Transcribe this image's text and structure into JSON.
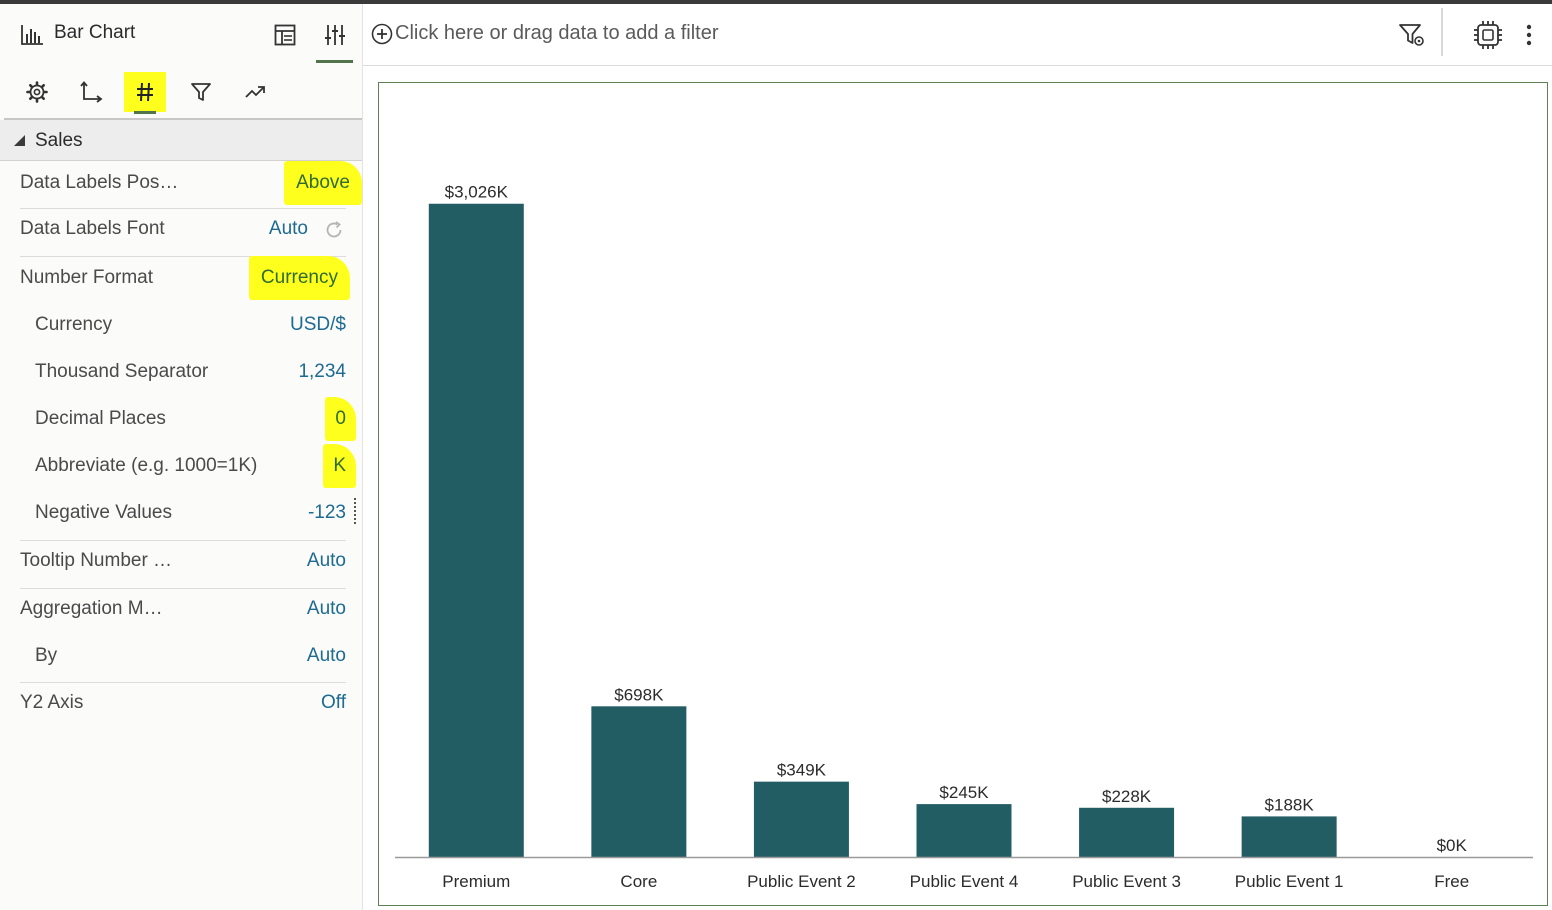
{
  "panel": {
    "chart_type_label": "Bar Chart",
    "tabs": [
      "general-tab",
      "axis-tab",
      "values-tab",
      "filters-tab",
      "analytics-tab"
    ],
    "active_tab": "values-tab",
    "section": "Sales",
    "rows": [
      {
        "label": "Data Labels Pos…",
        "value": "Above",
        "highlight": true
      },
      {
        "label": "Data Labels Font",
        "value": "Auto",
        "highlight": false
      },
      {
        "label": "Number Format",
        "value": "Currency",
        "highlight": true
      },
      {
        "label": "Currency",
        "value": "USD/$",
        "highlight": false
      },
      {
        "label": "Thousand Separator",
        "value": "1,234",
        "highlight": false
      },
      {
        "label": "Decimal Places",
        "value": "0",
        "highlight": true
      },
      {
        "label": "Abbreviate (e.g. 1000=1K)",
        "value": "K",
        "highlight": true
      },
      {
        "label": "Negative Values",
        "value": "-123",
        "highlight": false
      },
      {
        "label": "Tooltip Number …",
        "value": "Auto",
        "highlight": false
      },
      {
        "label": "Aggregation M…",
        "value": "Auto",
        "highlight": false
      },
      {
        "label": "By",
        "value": "Auto",
        "highlight": false
      },
      {
        "label": "Y2 Axis",
        "value": "Off",
        "highlight": false
      }
    ]
  },
  "filter_bar": {
    "placeholder": "Click here or drag data to add a filter"
  },
  "colors": {
    "bar": "#235d64",
    "highlight": "#ffff1e",
    "value_text": "#1d6a92",
    "accent": "#52744d"
  },
  "chart_data": {
    "type": "bar",
    "categories": [
      "Premium",
      "Core",
      "Public Event 2",
      "Public Event 4",
      "Public Event 3",
      "Public Event 1",
      "Free"
    ],
    "values": [
      3026,
      698,
      349,
      245,
      228,
      188,
      0
    ],
    "data_labels": [
      "$3,026K",
      "$698K",
      "$349K",
      "$245K",
      "$228K",
      "$188K",
      "$0K"
    ],
    "title": "",
    "xlabel": "",
    "ylabel": "",
    "ylim": [
      0,
      3400
    ],
    "grid": false,
    "legend": "none",
    "data_label_position": "above"
  }
}
